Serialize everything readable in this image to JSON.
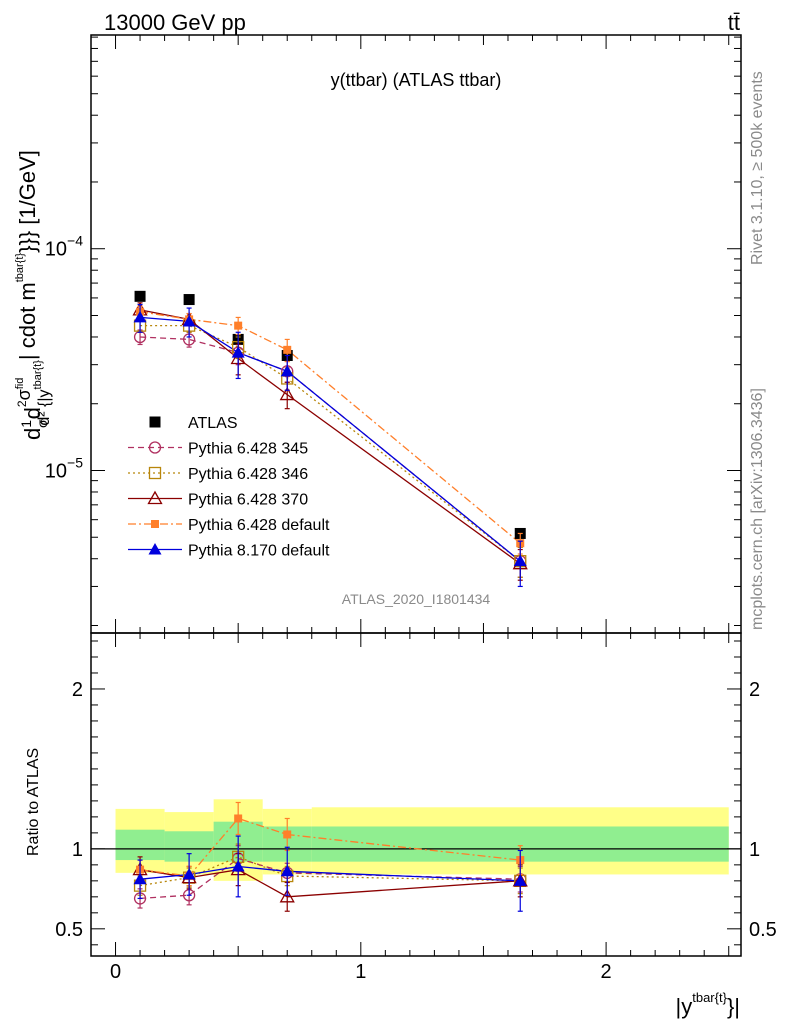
{
  "header": {
    "left": "13000 GeV pp",
    "right": "tt̄"
  },
  "side_labels": {
    "rivet": "Rivet 3.1.10, ≥ 500k events",
    "mcplots": "mcplots.cern.ch [arXiv:1306.3436]"
  },
  "chart_data": [
    {
      "type": "scatter",
      "title": "y(ttbar) (ATLAS ttbar)",
      "watermark": "ATLAS_2020_I1801434",
      "ylabel": "d 1/σ d²σ^fid / d²{|y^tbar{t}|} cdot m^tbar{t}}}} [1/GeV]",
      "ylabel_parts": {
        "d": "d",
        "one": "1",
        "sigma": "σ",
        "d2": "d",
        "two": "2",
        "sigmafid": "σ",
        "fid": "fid",
        "denom": "d² {|y",
        "tbar": "tbar{t}",
        "cdot": "| cdot m",
        "msup": "tbar{t}",
        "tail": "}}} [1/GeV]"
      },
      "yscale": "log",
      "xlim": [
        -0.1,
        2.55
      ],
      "ylim": [
        1.85e-06,
        0.00092
      ],
      "y_ticks": [
        {
          "value": 0.0001,
          "base": "10",
          "exp": "−4"
        },
        {
          "value": 1e-05,
          "base": "10",
          "exp": "−5"
        }
      ],
      "legend_position": "lower-left",
      "series": [
        {
          "name": "ATLAS",
          "color": "#000000",
          "marker": "filled-square",
          "line": "none",
          "x": [
            0.1,
            0.3,
            0.5,
            0.7,
            1.65
          ],
          "y": [
            6.1e-05,
            5.9e-05,
            3.9e-05,
            3.3e-05,
            5.2e-06
          ],
          "yerr": [
            0,
            0,
            0,
            0,
            0
          ]
        },
        {
          "name": "Pythia 6.428 345",
          "color": "#b03060",
          "marker": "open-circle",
          "line": "dashed",
          "x": [
            0.1,
            0.3,
            0.5,
            0.7,
            1.65
          ],
          "y": [
            4e-05,
            3.9e-05,
            3.4e-05,
            2.8e-05,
            3.9e-06
          ],
          "yerr": [
            3e-06,
            3e-06,
            4e-06,
            3e-06,
            6e-07
          ]
        },
        {
          "name": "Pythia 6.428 346",
          "color": "#b8860b",
          "marker": "open-square",
          "line": "dotted",
          "x": [
            0.1,
            0.3,
            0.5,
            0.7,
            1.65
          ],
          "y": [
            4.5e-05,
            4.5e-05,
            3.6e-05,
            2.6e-05,
            3.9e-06
          ],
          "yerr": [
            3e-06,
            3e-06,
            4e-06,
            3e-06,
            6e-07
          ]
        },
        {
          "name": "Pythia 6.428 370",
          "color": "#8b0000",
          "marker": "open-triangle",
          "line": "solid",
          "x": [
            0.1,
            0.3,
            0.5,
            0.7,
            1.65
          ],
          "y": [
            5.3e-05,
            4.8e-05,
            3.2e-05,
            2.2e-05,
            3.8e-06
          ],
          "yerr": [
            4e-06,
            3e-06,
            5e-06,
            3e-06,
            6e-07
          ]
        },
        {
          "name": "Pythia 6.428 default",
          "color": "#ff7f2a",
          "marker": "filled-square-small",
          "line": "dashdot",
          "x": [
            0.1,
            0.3,
            0.5,
            0.7,
            1.65
          ],
          "y": [
            5.2e-05,
            4.8e-05,
            4.5e-05,
            3.5e-05,
            4.7e-06
          ],
          "yerr": [
            3e-06,
            3e-06,
            4e-06,
            4e-06,
            5e-07
          ]
        },
        {
          "name": "Pythia 8.170 default",
          "color": "#0000dd",
          "marker": "filled-triangle",
          "line": "solid",
          "x": [
            0.1,
            0.3,
            0.5,
            0.7,
            1.65
          ],
          "y": [
            4.9e-05,
            4.7e-05,
            3.4e-05,
            2.8e-05,
            3.9e-06
          ],
          "yerr": [
            7e-06,
            7e-06,
            8e-06,
            5e-06,
            9e-07
          ]
        }
      ]
    },
    {
      "type": "scatter",
      "ylabel": "Ratio to ATLAS",
      "xlabel": "|y^tbar{t}}|",
      "xlabel_parts": {
        "main": "|y",
        "sup": "tbar{t}",
        "tail": "}|"
      },
      "xlim": [
        -0.1,
        2.55
      ],
      "ylim": [
        0.33,
        2.35
      ],
      "x_ticks": [
        {
          "value": 0,
          "label": "0"
        },
        {
          "value": 1,
          "label": "1"
        },
        {
          "value": 2,
          "label": "2"
        }
      ],
      "y_ticks": [
        {
          "value": 0.5,
          "label": "0.5"
        },
        {
          "value": 1,
          "label": "1"
        },
        {
          "value": 2,
          "label": "2"
        }
      ],
      "reference_line": 1,
      "bands": [
        {
          "x0": 0.0,
          "x1": 0.2,
          "inner": [
            0.93,
            1.12
          ],
          "outer": [
            0.85,
            1.25
          ]
        },
        {
          "x0": 0.2,
          "x1": 0.4,
          "inner": [
            0.92,
            1.11
          ],
          "outer": [
            0.84,
            1.23
          ]
        },
        {
          "x0": 0.4,
          "x1": 0.6,
          "inner": [
            0.92,
            1.17
          ],
          "outer": [
            0.8,
            1.31
          ]
        },
        {
          "x0": 0.6,
          "x1": 0.8,
          "inner": [
            0.92,
            1.14
          ],
          "outer": [
            0.84,
            1.25
          ]
        },
        {
          "x0": 0.8,
          "x1": 2.5,
          "inner": [
            0.92,
            1.14
          ],
          "outer": [
            0.84,
            1.26
          ]
        }
      ],
      "band_colors": {
        "inner": "#90ee90",
        "outer": "#ffff88"
      },
      "series": [
        {
          "name": "Pythia 6.428 345",
          "color": "#b03060",
          "marker": "open-circle",
          "line": "dashed",
          "x": [
            0.1,
            0.3,
            0.5,
            0.7,
            1.65
          ],
          "y": [
            0.69,
            0.71,
            0.94,
            0.85,
            0.81
          ],
          "yerr": [
            0.06,
            0.06,
            0.08,
            0.06,
            0.08
          ]
        },
        {
          "name": "Pythia 6.428 346",
          "color": "#b8860b",
          "marker": "open-square",
          "line": "dotted",
          "x": [
            0.1,
            0.3,
            0.5,
            0.7,
            1.65
          ],
          "y": [
            0.77,
            0.82,
            0.95,
            0.83,
            0.8
          ],
          "yerr": [
            0.06,
            0.06,
            0.08,
            0.06,
            0.08
          ]
        },
        {
          "name": "Pythia 6.428 370",
          "color": "#8b0000",
          "marker": "open-triangle",
          "line": "solid",
          "x": [
            0.1,
            0.3,
            0.5,
            0.7,
            1.65
          ],
          "y": [
            0.87,
            0.82,
            0.87,
            0.7,
            0.8
          ],
          "yerr": [
            0.08,
            0.07,
            0.1,
            0.09,
            0.1
          ]
        },
        {
          "name": "Pythia 6.428 default",
          "color": "#ff7f2a",
          "marker": "filled-square-small",
          "line": "dashdot",
          "x": [
            0.1,
            0.3,
            0.5,
            0.7,
            1.65
          ],
          "y": [
            0.87,
            0.83,
            1.19,
            1.09,
            0.93
          ],
          "yerr": [
            0.06,
            0.06,
            0.1,
            0.1,
            0.09
          ]
        },
        {
          "name": "Pythia 8.170 default",
          "color": "#0000dd",
          "marker": "filled-triangle",
          "line": "solid",
          "x": [
            0.1,
            0.3,
            0.5,
            0.7,
            1.65
          ],
          "y": [
            0.81,
            0.84,
            0.89,
            0.86,
            0.8
          ],
          "yerr": [
            0.12,
            0.13,
            0.19,
            0.15,
            0.19
          ]
        }
      ]
    }
  ]
}
